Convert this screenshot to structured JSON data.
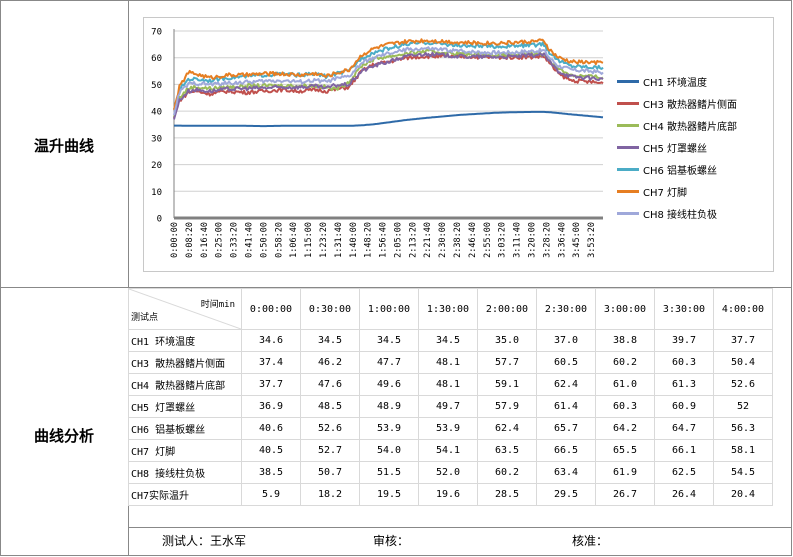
{
  "labels": {
    "curve_section": "温升曲线",
    "analysis_section": "曲线分析"
  },
  "chart_data": {
    "type": "line",
    "title": "",
    "xlabel": "",
    "ylabel": "",
    "ylim": [
      0,
      70
    ],
    "yticks": [
      0,
      10,
      20,
      30,
      40,
      50,
      60,
      70
    ],
    "grid": true,
    "legend_position": "right",
    "x_labels": [
      "0:00:00",
      "0:08:20",
      "0:16:40",
      "0:25:00",
      "0:33:20",
      "0:41:40",
      "0:50:00",
      "0:58:20",
      "1:06:40",
      "1:15:00",
      "1:23:20",
      "1:31:40",
      "1:40:00",
      "1:48:20",
      "1:56:40",
      "2:05:00",
      "2:13:20",
      "2:21:40",
      "2:30:00",
      "2:38:20",
      "2:46:40",
      "2:55:00",
      "3:03:20",
      "3:11:40",
      "3:20:00",
      "3:28:20",
      "3:36:40",
      "3:45:00",
      "3:53:20"
    ],
    "x_points_min": [
      0,
      3,
      8,
      12,
      20,
      30,
      40,
      50,
      60,
      70,
      80,
      85,
      90,
      98,
      105,
      112,
      120,
      130,
      140,
      150,
      160,
      170,
      180,
      190,
      200,
      207,
      210,
      215,
      222,
      232,
      240
    ],
    "series": [
      {
        "name": "CH1 环境温度",
        "color": "#2e6aa8",
        "values": [
          34.6,
          34.6,
          34.5,
          34.5,
          34.5,
          34.5,
          34.5,
          34.4,
          34.5,
          34.5,
          34.5,
          34.5,
          34.5,
          34.5,
          34.7,
          35.1,
          35.8,
          36.7,
          37.4,
          38.0,
          38.6,
          39.0,
          39.4,
          39.6,
          39.7,
          39.7,
          39.6,
          39.3,
          38.8,
          38.2,
          37.7
        ]
      },
      {
        "name": "CH3 散热器鳍片侧面",
        "color": "#c0504d",
        "values": [
          37.4,
          44,
          47,
          47.5,
          46.5,
          47.5,
          47,
          47.5,
          48,
          47.5,
          48,
          47.5,
          48.1,
          49,
          55,
          57.5,
          58.5,
          60,
          60.5,
          60.5,
          60.5,
          60.3,
          60.2,
          60.2,
          60.3,
          60.5,
          58,
          54,
          51.5,
          51,
          50.4
        ]
      },
      {
        "name": "CH4 散热器鳍片底部",
        "color": "#9bbb59",
        "values": [
          37.7,
          45,
          48.5,
          49,
          48.5,
          49,
          49.5,
          49.5,
          49.6,
          49.5,
          49.5,
          49,
          48.1,
          51,
          57,
          59.5,
          60.5,
          61.5,
          62.4,
          62,
          61.5,
          61.2,
          61.0,
          61.0,
          61.3,
          61.5,
          59,
          56,
          53.5,
          53,
          52.6
        ]
      },
      {
        "name": "CH5 灯罩螺丝",
        "color": "#8064a2",
        "values": [
          36.9,
          44,
          47.5,
          48,
          47.5,
          48.2,
          48.5,
          48.7,
          48.9,
          49,
          49.3,
          48.5,
          49.7,
          50,
          55,
          57,
          58.5,
          60.5,
          61.4,
          61.0,
          60.5,
          60.4,
          60.3,
          60.4,
          60.9,
          61.2,
          58.5,
          55,
          53,
          52.4,
          52
        ]
      },
      {
        "name": "CH6 铝基板螺丝",
        "color": "#4bacc6",
        "values": [
          40.6,
          48,
          52,
          52,
          51.5,
          52.5,
          53,
          53.5,
          53.9,
          53.5,
          53.9,
          53,
          53.9,
          55,
          60,
          62,
          63.5,
          65,
          65.7,
          65.2,
          64.5,
          64.3,
          64.2,
          64.4,
          64.7,
          65,
          62,
          59,
          57,
          56.6,
          56.3
        ]
      },
      {
        "name": "CH7 灯脚",
        "color": "#e67e22",
        "values": [
          40.5,
          49,
          54.5,
          54,
          52.5,
          53.5,
          53.5,
          54,
          54.0,
          53.5,
          54.1,
          53,
          54.1,
          55.5,
          61,
          63.5,
          65,
          66,
          66.5,
          66.2,
          65.7,
          65.5,
          65.5,
          65.7,
          66.1,
          66.3,
          63,
          60,
          58.5,
          58.3,
          58.1
        ]
      },
      {
        "name": "CH8 接线柱负极",
        "color": "#9fa8da",
        "values": [
          38.5,
          47,
          50,
          50.5,
          50,
          50.5,
          50.8,
          51.2,
          51.5,
          51,
          51.5,
          51,
          52.0,
          53,
          58,
          60,
          61.5,
          63,
          63.4,
          63.0,
          62.5,
          62.1,
          61.9,
          62.0,
          62.5,
          62.7,
          60,
          57,
          55.5,
          55,
          54.5
        ]
      }
    ]
  },
  "table": {
    "corner_top": "时间min",
    "corner_bottom": "测试点",
    "headers": [
      "0:00:00",
      "0:30:00",
      "1:00:00",
      "1:30:00",
      "2:00:00",
      "2:30:00",
      "3:00:00",
      "3:30:00",
      "4:00:00"
    ],
    "rows": [
      {
        "name": "CH1 环境温度",
        "values": [
          "34.6",
          "34.5",
          "34.5",
          "34.5",
          "35.0",
          "37.0",
          "38.8",
          "39.7",
          "37.7"
        ]
      },
      {
        "name": "CH3 散热器鳍片侧面",
        "values": [
          "37.4",
          "46.2",
          "47.7",
          "48.1",
          "57.7",
          "60.5",
          "60.2",
          "60.3",
          "50.4"
        ]
      },
      {
        "name": "CH4 散热器鳍片底部",
        "values": [
          "37.7",
          "47.6",
          "49.6",
          "48.1",
          "59.1",
          "62.4",
          "61.0",
          "61.3",
          "52.6"
        ]
      },
      {
        "name": "CH5 灯罩螺丝",
        "values": [
          "36.9",
          "48.5",
          "48.9",
          "49.7",
          "57.9",
          "61.4",
          "60.3",
          "60.9",
          "52"
        ]
      },
      {
        "name": "CH6 铝基板螺丝",
        "values": [
          "40.6",
          "52.6",
          "53.9",
          "53.9",
          "62.4",
          "65.7",
          "64.2",
          "64.7",
          "56.3"
        ]
      },
      {
        "name": "CH7 灯脚",
        "values": [
          "40.5",
          "52.7",
          "54.0",
          "54.1",
          "63.5",
          "66.5",
          "65.5",
          "66.1",
          "58.1"
        ]
      },
      {
        "name": "CH8 接线柱负极",
        "values": [
          "38.5",
          "50.7",
          "51.5",
          "52.0",
          "60.2",
          "63.4",
          "61.9",
          "62.5",
          "54.5"
        ]
      },
      {
        "name": "CH7实际温升",
        "values": [
          "5.9",
          "18.2",
          "19.5",
          "19.6",
          "28.5",
          "29.5",
          "26.7",
          "26.4",
          "20.4"
        ]
      }
    ]
  },
  "footer": {
    "tester": "测试人：王水军",
    "reviewer": "审核：",
    "approver": "核准："
  }
}
